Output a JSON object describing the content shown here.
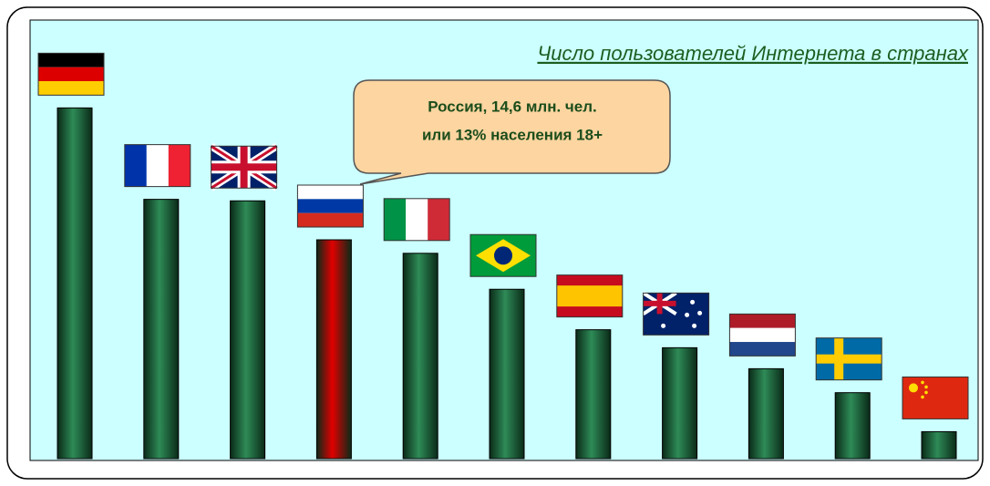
{
  "chart_data": {
    "type": "bar",
    "title": "Число пользователей Интернета в странах",
    "annotation": [
      "Россия, 14,6 млн. чел.",
      "или 13% населения 18+"
    ],
    "categories": [
      null,
      null,
      null,
      null,
      null,
      null,
      null,
      null,
      null,
      null,
      null
    ],
    "values": [
      23.4,
      17.3,
      17.2,
      14.6,
      13.7,
      11.3,
      8.6,
      7.4,
      6.0,
      4.4,
      1.8
    ],
    "colors": [
      "#2e8b57",
      "#2e8b57",
      "#2e8b57",
      "#e00000",
      "#2e8b57",
      "#2e8b57",
      "#2e8b57",
      "#2e8b57",
      "#2e8b57",
      "#2e8b57",
      "#2e8b57"
    ]
  }
}
